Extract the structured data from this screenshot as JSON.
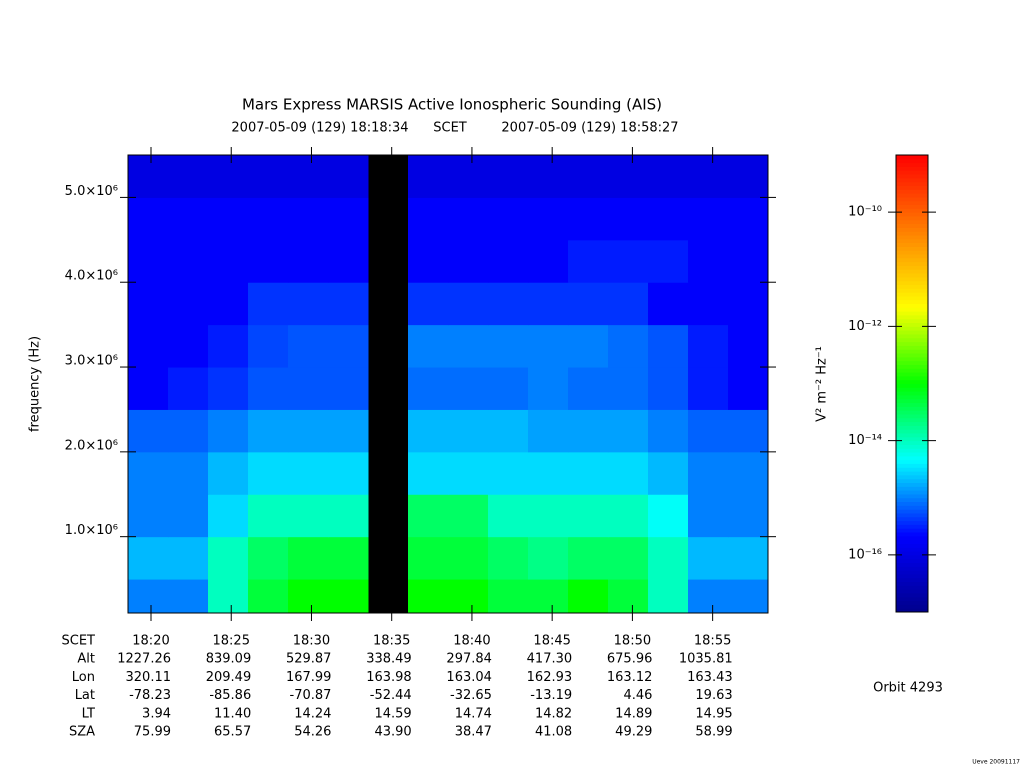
{
  "chart_data": {
    "type": "heatmap",
    "title": "Mars Express MARSIS Active Ionospheric Sounding (AIS)",
    "start": "2007-05-09 (129) 18:18:34",
    "time_label": "SCET",
    "end": "2007-05-09 (129) 18:58:27",
    "ylabel": "frequency (Hz)",
    "ylim": [
      100000,
      5500000
    ],
    "yticks": [
      {
        "value": 1000000,
        "label": "1.0×10⁶"
      },
      {
        "value": 2000000,
        "label": "2.0×10⁶"
      },
      {
        "value": 3000000,
        "label": "3.0×10⁶"
      },
      {
        "value": 4000000,
        "label": "4.0×10⁶"
      },
      {
        "value": 5000000,
        "label": "5.0×10⁶"
      }
    ],
    "y_bins": [
      100000,
      500000,
      1000000,
      1500000,
      2000000,
      2500000,
      3000000,
      3500000,
      4000000,
      4500000,
      5000000,
      5500000
    ],
    "z": [
      [
        1e-15,
        1e-15,
        1e-14,
        5e-14,
        1e-13,
        1e-13,
        null,
        1e-13,
        1e-13,
        5e-14,
        5e-14,
        1e-13,
        5e-14,
        1e-14,
        1e-15,
        1e-15
      ],
      [
        2e-15,
        2e-15,
        1e-14,
        3e-14,
        5e-14,
        5e-14,
        null,
        5e-14,
        5e-14,
        3e-14,
        2e-14,
        3e-14,
        3e-14,
        1e-14,
        2e-15,
        2e-15
      ],
      [
        1e-15,
        1e-15,
        3e-15,
        1e-14,
        1e-14,
        1e-14,
        null,
        3e-14,
        3e-14,
        1e-14,
        1e-14,
        1e-14,
        1e-14,
        5e-15,
        1e-15,
        1e-15
      ],
      [
        1e-15,
        1e-15,
        2e-15,
        3e-15,
        3e-15,
        3e-15,
        null,
        3e-15,
        3e-15,
        3e-15,
        3e-15,
        3e-15,
        3e-15,
        2e-15,
        1e-15,
        1e-15
      ],
      [
        7e-16,
        7e-16,
        1e-15,
        1.5e-15,
        1.5e-15,
        1.5e-15,
        null,
        2e-15,
        2e-15,
        2e-15,
        1.5e-15,
        1.5e-15,
        1.5e-15,
        1e-15,
        7e-16,
        7e-16
      ],
      [
        2e-16,
        3e-16,
        4e-16,
        6e-16,
        6e-16,
        6e-16,
        null,
        8e-16,
        8e-16,
        8e-16,
        1e-15,
        8e-16,
        8e-16,
        6e-16,
        3e-16,
        2e-16
      ],
      [
        2e-16,
        2e-16,
        3e-16,
        5e-16,
        6e-16,
        6e-16,
        null,
        1e-15,
        1e-15,
        1e-15,
        1e-15,
        1e-15,
        8e-16,
        6e-16,
        3e-16,
        2e-16
      ],
      [
        2e-16,
        2e-16,
        2e-16,
        4e-16,
        4e-16,
        4e-16,
        null,
        4e-16,
        4e-16,
        4e-16,
        4e-16,
        4e-16,
        4e-16,
        2e-16,
        2e-16,
        2e-16
      ],
      [
        2e-16,
        2e-16,
        2e-16,
        2e-16,
        2e-16,
        2e-16,
        null,
        2e-16,
        2e-16,
        2e-16,
        2e-16,
        3e-16,
        3e-16,
        3e-16,
        2e-16,
        2e-16
      ],
      [
        2e-16,
        2e-16,
        2e-16,
        2e-16,
        2e-16,
        2e-16,
        null,
        2e-16,
        2e-16,
        2e-16,
        2e-16,
        2e-16,
        2e-16,
        2e-16,
        2e-16,
        2e-16
      ],
      [
        1e-16,
        1e-16,
        1e-16,
        1e-16,
        1e-16,
        1e-16,
        null,
        1e-16,
        1e-16,
        1e-16,
        1e-16,
        1e-16,
        1e-16,
        1e-16,
        1e-16,
        1e-16
      ]
    ],
    "null_color": "#000000",
    "zscale": "log",
    "zlim": [
      1e-17,
      1e-09
    ],
    "zticks": [
      {
        "value": 1e-10,
        "label": "10⁻¹⁰"
      },
      {
        "value": 1e-12,
        "label": "10⁻¹²"
      },
      {
        "value": 1e-14,
        "label": "10⁻¹⁴"
      },
      {
        "value": 1e-16,
        "label": "10⁻¹⁶"
      }
    ],
    "zlabel": "V² m⁻² Hz⁻¹",
    "colormap": [
      "#00008c",
      "#0000ff",
      "#00ffff",
      "#00ff00",
      "#ffff00",
      "#ff8000",
      "#ff0000"
    ],
    "ephemeris": [
      {
        "label": "SCET",
        "values": [
          "18:20",
          "18:25",
          "18:30",
          "18:35",
          "18:40",
          "18:45",
          "18:50",
          "18:55"
        ]
      },
      {
        "label": "Alt",
        "values": [
          "1227.26",
          "839.09",
          "529.87",
          "338.49",
          "297.84",
          "417.30",
          "675.96",
          "1035.81"
        ]
      },
      {
        "label": "Lon",
        "values": [
          "320.11",
          "209.49",
          "167.99",
          "163.98",
          "163.04",
          "162.93",
          "163.12",
          "163.43"
        ]
      },
      {
        "label": "Lat",
        "values": [
          "-78.23",
          "-85.86",
          "-70.87",
          "-52.44",
          "-32.65",
          "-13.19",
          "4.46",
          "19.63"
        ]
      },
      {
        "label": "LT",
        "values": [
          "3.94",
          "11.40",
          "14.24",
          "14.59",
          "14.74",
          "14.82",
          "14.89",
          "14.95"
        ]
      },
      {
        "label": "SZA",
        "values": [
          "75.99",
          "65.57",
          "54.26",
          "43.90",
          "38.47",
          "41.08",
          "49.29",
          "58.99"
        ]
      }
    ],
    "orbit": "Orbit 4293",
    "credit": "Ueve 20091117"
  }
}
